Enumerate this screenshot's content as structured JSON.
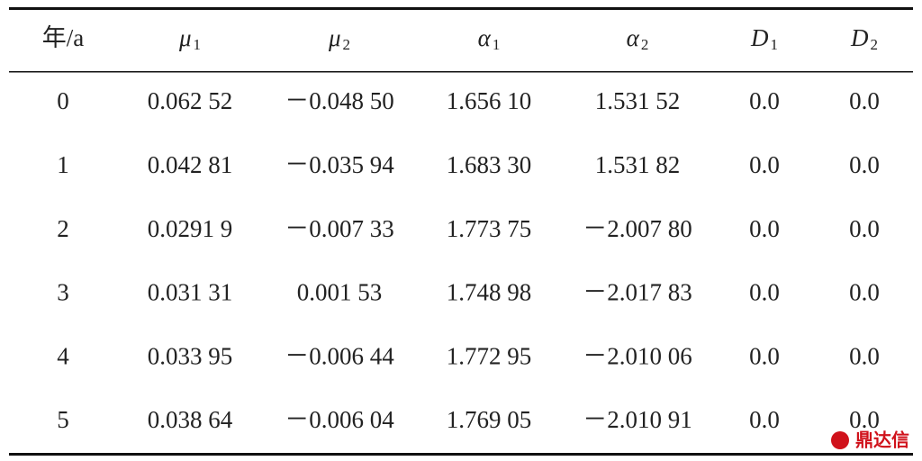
{
  "table": {
    "header": [
      {
        "text": "年/a"
      },
      {
        "symbol": "μ",
        "sub": "1"
      },
      {
        "symbol": "μ",
        "sub": "2"
      },
      {
        "symbol": "α",
        "sub": "1"
      },
      {
        "symbol": "α",
        "sub": "2"
      },
      {
        "symbol": "D",
        "sub": "1"
      },
      {
        "symbol": "D",
        "sub": "2"
      }
    ],
    "rows": [
      [
        "0",
        "0.062 52",
        "－0.048 50",
        "1.656 10",
        "1.531 52",
        "0.0",
        "0.0"
      ],
      [
        "1",
        "0.042 81",
        "－0.035 94",
        "1.683 30",
        "1.531 82",
        "0.0",
        "0.0"
      ],
      [
        "2",
        "0.0291 9",
        "－0.007 33",
        "1.773 75",
        "－2.007 80",
        "0.0",
        "0.0"
      ],
      [
        "3",
        "0.031 31",
        "0.001 53",
        "1.748 98",
        "－2.017 83",
        "0.0",
        "0.0"
      ],
      [
        "4",
        "0.033 95",
        "－0.006 44",
        "1.772 95",
        "－2.010 06",
        "0.0",
        "0.0"
      ],
      [
        "5",
        "0.038 64",
        "－0.006 04",
        "1.769 05",
        "－2.010 91",
        "0.0",
        "0.0"
      ]
    ]
  },
  "watermark": "鼎达信"
}
